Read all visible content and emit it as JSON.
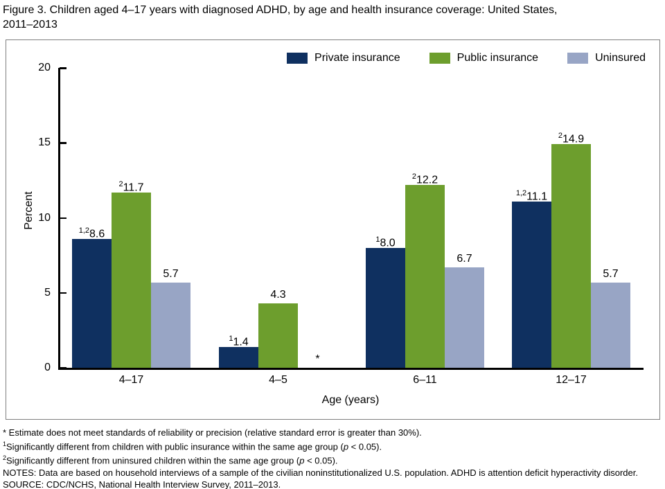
{
  "header": {
    "line1": "Figure 3. Children aged 4–17 years with diagnosed ADHD, by age and health insurance coverage: United States,",
    "line2": "2011–2013"
  },
  "chart_data": {
    "type": "bar",
    "title": "Figure 3. Children aged 4–17 years with diagnosed ADHD, by age and health insurance coverage: United States, 2011–2013",
    "xlabel": "Age (years)",
    "ylabel": "Percent",
    "ylim": [
      0,
      20
    ],
    "yticks": [
      0,
      5,
      10,
      15,
      20
    ],
    "grid": false,
    "legend_position": "top-right",
    "categories": [
      "4–17",
      "4–5",
      "6–11",
      "12–17"
    ],
    "series": [
      {
        "name": "Private insurance",
        "color": "#0f3060",
        "values": [
          8.6,
          1.4,
          8.0,
          11.1
        ],
        "data_labels": [
          {
            "sup": "1,2",
            "text": "8.6"
          },
          {
            "sup": "1",
            "text": "1.4"
          },
          {
            "sup": "1",
            "text": "8.0"
          },
          {
            "sup": "1,2",
            "text": "11.1"
          }
        ]
      },
      {
        "name": "Public insurance",
        "color": "#6d9e2d",
        "values": [
          11.7,
          4.3,
          12.2,
          14.9
        ],
        "data_labels": [
          {
            "sup": "2",
            "text": "11.7"
          },
          {
            "sup": "",
            "text": "4.3"
          },
          {
            "sup": "2",
            "text": "12.2"
          },
          {
            "sup": "2",
            "text": "14.9"
          }
        ]
      },
      {
        "name": "Uninsured",
        "color": "#98a5c5",
        "values": [
          5.7,
          null,
          6.7,
          5.7
        ],
        "data_labels": [
          {
            "sup": "",
            "text": "5.7"
          },
          {
            "sup": "",
            "text": "*"
          },
          {
            "sup": "",
            "text": "6.7"
          },
          {
            "sup": "",
            "text": "5.7"
          }
        ]
      }
    ]
  },
  "footnotes": [
    {
      "segments": [
        {
          "t": "* Estimate does not meet standards of reliability or precision (relative standard error is greater than 30%)."
        }
      ]
    },
    {
      "segments": [
        {
          "t": "1",
          "s": "sup"
        },
        {
          "t": "Significantly different from children with public insurance within the same age group ("
        },
        {
          "t": "p",
          "s": "i"
        },
        {
          "t": " < 0.05)."
        }
      ]
    },
    {
      "segments": [
        {
          "t": "2",
          "s": "sup"
        },
        {
          "t": "Significantly different from uninsured children within the same age group ("
        },
        {
          "t": "p",
          "s": "i"
        },
        {
          "t": " < 0.05)."
        }
      ]
    },
    {
      "segments": [
        {
          "t": "NOTES: Data are based on household interviews of a sample of the civilian noninstitutionalized U.S. population. ADHD is attention deficit hyperactivity disorder."
        }
      ]
    },
    {
      "segments": [
        {
          "t": "SOURCE: CDC/NCHS, National Health Interview Survey, 2011–2013."
        }
      ]
    }
  ]
}
